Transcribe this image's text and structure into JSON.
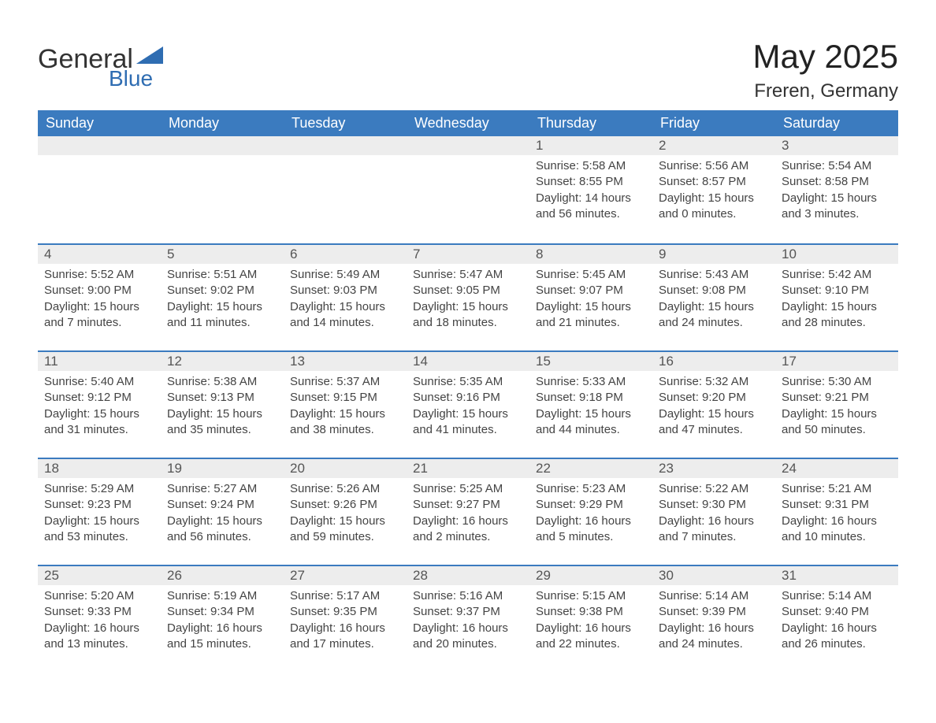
{
  "logo": {
    "word1": "General",
    "word2": "Blue",
    "color_dark": "#333333",
    "color_blue": "#2f6db2"
  },
  "title": "May 2025",
  "location": "Freren, Germany",
  "colors": {
    "header_bg": "#3b7bbf",
    "header_text": "#ffffff",
    "daynum_bg": "#ededed",
    "daynum_border": "#3b7bbf",
    "page_bg": "#ffffff",
    "text": "#444444"
  },
  "day_headers": [
    "Sunday",
    "Monday",
    "Tuesday",
    "Wednesday",
    "Thursday",
    "Friday",
    "Saturday"
  ],
  "weeks": [
    [
      null,
      null,
      null,
      null,
      {
        "n": "1",
        "sunrise": "5:58 AM",
        "sunset": "8:55 PM",
        "daylight": "14 hours and 56 minutes."
      },
      {
        "n": "2",
        "sunrise": "5:56 AM",
        "sunset": "8:57 PM",
        "daylight": "15 hours and 0 minutes."
      },
      {
        "n": "3",
        "sunrise": "5:54 AM",
        "sunset": "8:58 PM",
        "daylight": "15 hours and 3 minutes."
      }
    ],
    [
      {
        "n": "4",
        "sunrise": "5:52 AM",
        "sunset": "9:00 PM",
        "daylight": "15 hours and 7 minutes."
      },
      {
        "n": "5",
        "sunrise": "5:51 AM",
        "sunset": "9:02 PM",
        "daylight": "15 hours and 11 minutes."
      },
      {
        "n": "6",
        "sunrise": "5:49 AM",
        "sunset": "9:03 PM",
        "daylight": "15 hours and 14 minutes."
      },
      {
        "n": "7",
        "sunrise": "5:47 AM",
        "sunset": "9:05 PM",
        "daylight": "15 hours and 18 minutes."
      },
      {
        "n": "8",
        "sunrise": "5:45 AM",
        "sunset": "9:07 PM",
        "daylight": "15 hours and 21 minutes."
      },
      {
        "n": "9",
        "sunrise": "5:43 AM",
        "sunset": "9:08 PM",
        "daylight": "15 hours and 24 minutes."
      },
      {
        "n": "10",
        "sunrise": "5:42 AM",
        "sunset": "9:10 PM",
        "daylight": "15 hours and 28 minutes."
      }
    ],
    [
      {
        "n": "11",
        "sunrise": "5:40 AM",
        "sunset": "9:12 PM",
        "daylight": "15 hours and 31 minutes."
      },
      {
        "n": "12",
        "sunrise": "5:38 AM",
        "sunset": "9:13 PM",
        "daylight": "15 hours and 35 minutes."
      },
      {
        "n": "13",
        "sunrise": "5:37 AM",
        "sunset": "9:15 PM",
        "daylight": "15 hours and 38 minutes."
      },
      {
        "n": "14",
        "sunrise": "5:35 AM",
        "sunset": "9:16 PM",
        "daylight": "15 hours and 41 minutes."
      },
      {
        "n": "15",
        "sunrise": "5:33 AM",
        "sunset": "9:18 PM",
        "daylight": "15 hours and 44 minutes."
      },
      {
        "n": "16",
        "sunrise": "5:32 AM",
        "sunset": "9:20 PM",
        "daylight": "15 hours and 47 minutes."
      },
      {
        "n": "17",
        "sunrise": "5:30 AM",
        "sunset": "9:21 PM",
        "daylight": "15 hours and 50 minutes."
      }
    ],
    [
      {
        "n": "18",
        "sunrise": "5:29 AM",
        "sunset": "9:23 PM",
        "daylight": "15 hours and 53 minutes."
      },
      {
        "n": "19",
        "sunrise": "5:27 AM",
        "sunset": "9:24 PM",
        "daylight": "15 hours and 56 minutes."
      },
      {
        "n": "20",
        "sunrise": "5:26 AM",
        "sunset": "9:26 PM",
        "daylight": "15 hours and 59 minutes."
      },
      {
        "n": "21",
        "sunrise": "5:25 AM",
        "sunset": "9:27 PM",
        "daylight": "16 hours and 2 minutes."
      },
      {
        "n": "22",
        "sunrise": "5:23 AM",
        "sunset": "9:29 PM",
        "daylight": "16 hours and 5 minutes."
      },
      {
        "n": "23",
        "sunrise": "5:22 AM",
        "sunset": "9:30 PM",
        "daylight": "16 hours and 7 minutes."
      },
      {
        "n": "24",
        "sunrise": "5:21 AM",
        "sunset": "9:31 PM",
        "daylight": "16 hours and 10 minutes."
      }
    ],
    [
      {
        "n": "25",
        "sunrise": "5:20 AM",
        "sunset": "9:33 PM",
        "daylight": "16 hours and 13 minutes."
      },
      {
        "n": "26",
        "sunrise": "5:19 AM",
        "sunset": "9:34 PM",
        "daylight": "16 hours and 15 minutes."
      },
      {
        "n": "27",
        "sunrise": "5:17 AM",
        "sunset": "9:35 PM",
        "daylight": "16 hours and 17 minutes."
      },
      {
        "n": "28",
        "sunrise": "5:16 AM",
        "sunset": "9:37 PM",
        "daylight": "16 hours and 20 minutes."
      },
      {
        "n": "29",
        "sunrise": "5:15 AM",
        "sunset": "9:38 PM",
        "daylight": "16 hours and 22 minutes."
      },
      {
        "n": "30",
        "sunrise": "5:14 AM",
        "sunset": "9:39 PM",
        "daylight": "16 hours and 24 minutes."
      },
      {
        "n": "31",
        "sunrise": "5:14 AM",
        "sunset": "9:40 PM",
        "daylight": "16 hours and 26 minutes."
      }
    ]
  ],
  "labels": {
    "sunrise": "Sunrise:",
    "sunset": "Sunset:",
    "daylight": "Daylight:"
  }
}
